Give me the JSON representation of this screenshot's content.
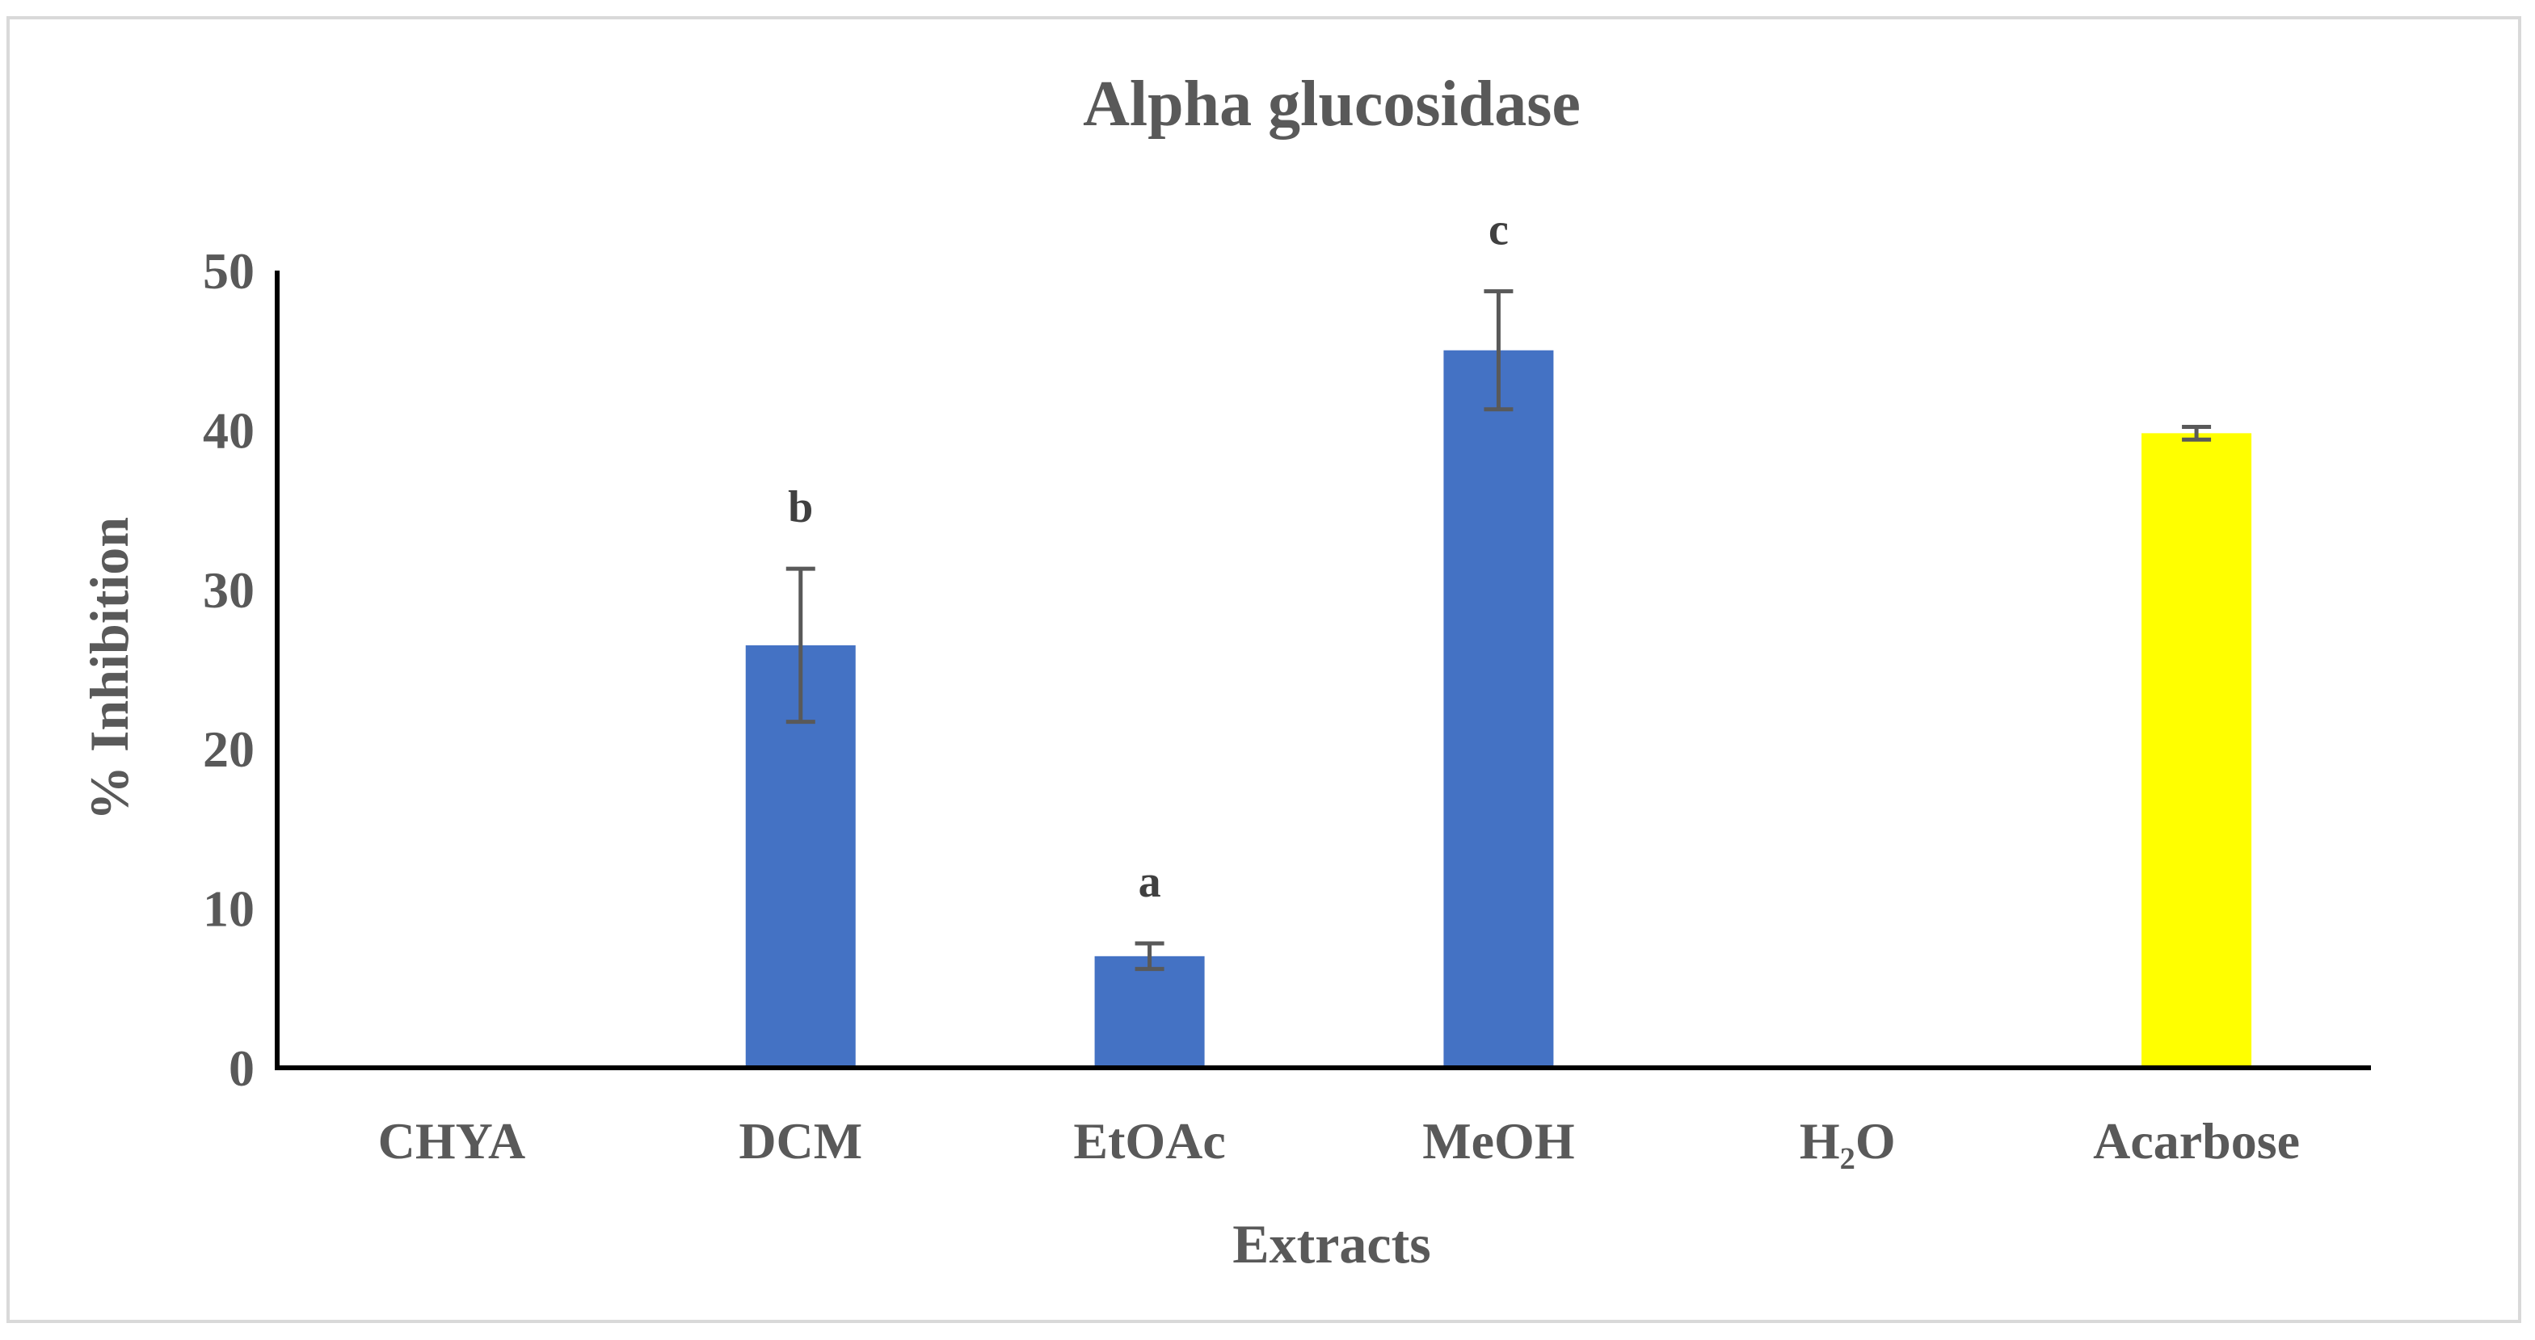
{
  "chart_data": {
    "type": "bar",
    "title": "Alpha glucosidase",
    "xlabel": "Extracts",
    "ylabel": "% Inhibition",
    "ylim": [
      0,
      50
    ],
    "yticks": [
      "0",
      "10",
      "20",
      "30",
      "40",
      "50"
    ],
    "categories": [
      "CHYA",
      "DCM",
      "EtOAc",
      "MeOH",
      "H₂O",
      "Acarbose"
    ],
    "values": [
      0,
      26.5,
      7.0,
      45.0,
      0,
      39.8
    ],
    "error": [
      0,
      4.8,
      0.8,
      3.7,
      0,
      0.4
    ],
    "significance_labels": [
      "",
      "b",
      "a",
      "c",
      "",
      ""
    ],
    "bar_colors": [
      "#4472c4",
      "#4472c4",
      "#4472c4",
      "#4472c4",
      "#4472c4",
      "#ffff00"
    ],
    "error_bar_color": "#595959",
    "axis_color": "#000000",
    "text_color": "#595959",
    "grid": false,
    "legend": "none"
  }
}
